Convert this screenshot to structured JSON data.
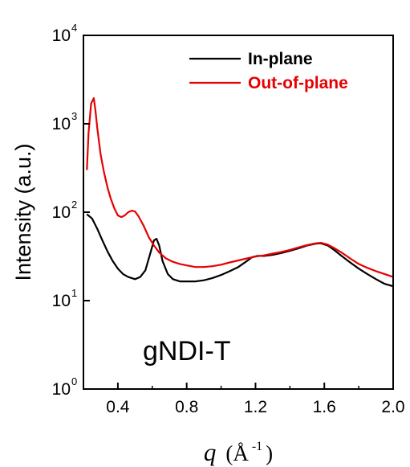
{
  "chart_data": {
    "type": "line",
    "title": "",
    "annotation": "gNDI-T",
    "xlabel": "q",
    "xlabel_unit_open": "(Å",
    "xlabel_unit_exp": "-1",
    "xlabel_unit_close": ")",
    "ylabel": "Intensity (a.u.)",
    "xlim": [
      0.2,
      2.0
    ],
    "ylim": [
      1,
      10000
    ],
    "yscale": "log",
    "x_ticks": [
      "0.4",
      "0.8",
      "1.2",
      "1.6",
      "2.0"
    ],
    "y_ticks": [
      {
        "base": "10",
        "exp": "0"
      },
      {
        "base": "10",
        "exp": "1"
      },
      {
        "base": "10",
        "exp": "2"
      },
      {
        "base": "10",
        "exp": "3"
      },
      {
        "base": "10",
        "exp": "4"
      }
    ],
    "legend_position": "top-right",
    "series": [
      {
        "name": "In-plane",
        "color": "#000000",
        "points": [
          [
            0.22,
            95
          ],
          [
            0.25,
            85
          ],
          [
            0.28,
            65
          ],
          [
            0.31,
            48
          ],
          [
            0.34,
            36
          ],
          [
            0.37,
            28
          ],
          [
            0.4,
            23
          ],
          [
            0.43,
            20
          ],
          [
            0.46,
            18.5
          ],
          [
            0.5,
            17.5
          ],
          [
            0.53,
            18.5
          ],
          [
            0.56,
            22
          ],
          [
            0.59,
            35
          ],
          [
            0.61,
            48
          ],
          [
            0.625,
            50
          ],
          [
            0.64,
            42
          ],
          [
            0.66,
            28
          ],
          [
            0.69,
            20
          ],
          [
            0.72,
            17.5
          ],
          [
            0.76,
            16.5
          ],
          [
            0.8,
            16.5
          ],
          [
            0.85,
            16.5
          ],
          [
            0.9,
            17
          ],
          [
            0.95,
            18
          ],
          [
            1.0,
            19.5
          ],
          [
            1.05,
            21.5
          ],
          [
            1.1,
            24
          ],
          [
            1.15,
            28
          ],
          [
            1.18,
            31
          ],
          [
            1.21,
            32
          ],
          [
            1.25,
            32
          ],
          [
            1.3,
            33
          ],
          [
            1.35,
            34.5
          ],
          [
            1.4,
            36.5
          ],
          [
            1.45,
            39
          ],
          [
            1.5,
            42
          ],
          [
            1.55,
            44
          ],
          [
            1.58,
            44.5
          ],
          [
            1.62,
            42
          ],
          [
            1.66,
            37
          ],
          [
            1.7,
            32
          ],
          [
            1.75,
            27
          ],
          [
            1.8,
            23
          ],
          [
            1.85,
            20
          ],
          [
            1.9,
            17.5
          ],
          [
            1.95,
            15.5
          ],
          [
            2.0,
            14.5
          ]
        ]
      },
      {
        "name": "Out-of-plane",
        "color": "#e60000",
        "points": [
          [
            0.22,
            300
          ],
          [
            0.23,
            800
          ],
          [
            0.245,
            1700
          ],
          [
            0.26,
            1950
          ],
          [
            0.27,
            1400
          ],
          [
            0.28,
            900
          ],
          [
            0.3,
            450
          ],
          [
            0.32,
            280
          ],
          [
            0.34,
            190
          ],
          [
            0.36,
            140
          ],
          [
            0.38,
            110
          ],
          [
            0.4,
            92
          ],
          [
            0.42,
            88
          ],
          [
            0.44,
            92
          ],
          [
            0.46,
            100
          ],
          [
            0.48,
            104
          ],
          [
            0.5,
            102
          ],
          [
            0.52,
            90
          ],
          [
            0.55,
            70
          ],
          [
            0.58,
            52
          ],
          [
            0.61,
            42
          ],
          [
            0.64,
            35
          ],
          [
            0.68,
            30
          ],
          [
            0.72,
            27.5
          ],
          [
            0.76,
            26
          ],
          [
            0.8,
            25
          ],
          [
            0.85,
            24
          ],
          [
            0.9,
            24
          ],
          [
            0.95,
            24.5
          ],
          [
            1.0,
            25.5
          ],
          [
            1.05,
            27
          ],
          [
            1.1,
            28.5
          ],
          [
            1.15,
            30
          ],
          [
            1.2,
            31.5
          ],
          [
            1.25,
            32.5
          ],
          [
            1.3,
            34
          ],
          [
            1.35,
            35.5
          ],
          [
            1.4,
            37.5
          ],
          [
            1.45,
            40
          ],
          [
            1.5,
            42.5
          ],
          [
            1.55,
            44.5
          ],
          [
            1.58,
            45
          ],
          [
            1.62,
            43
          ],
          [
            1.66,
            39
          ],
          [
            1.7,
            35
          ],
          [
            1.75,
            30
          ],
          [
            1.8,
            26
          ],
          [
            1.85,
            23.5
          ],
          [
            1.9,
            21.5
          ],
          [
            1.95,
            20
          ],
          [
            2.0,
            18.5
          ]
        ]
      }
    ]
  }
}
